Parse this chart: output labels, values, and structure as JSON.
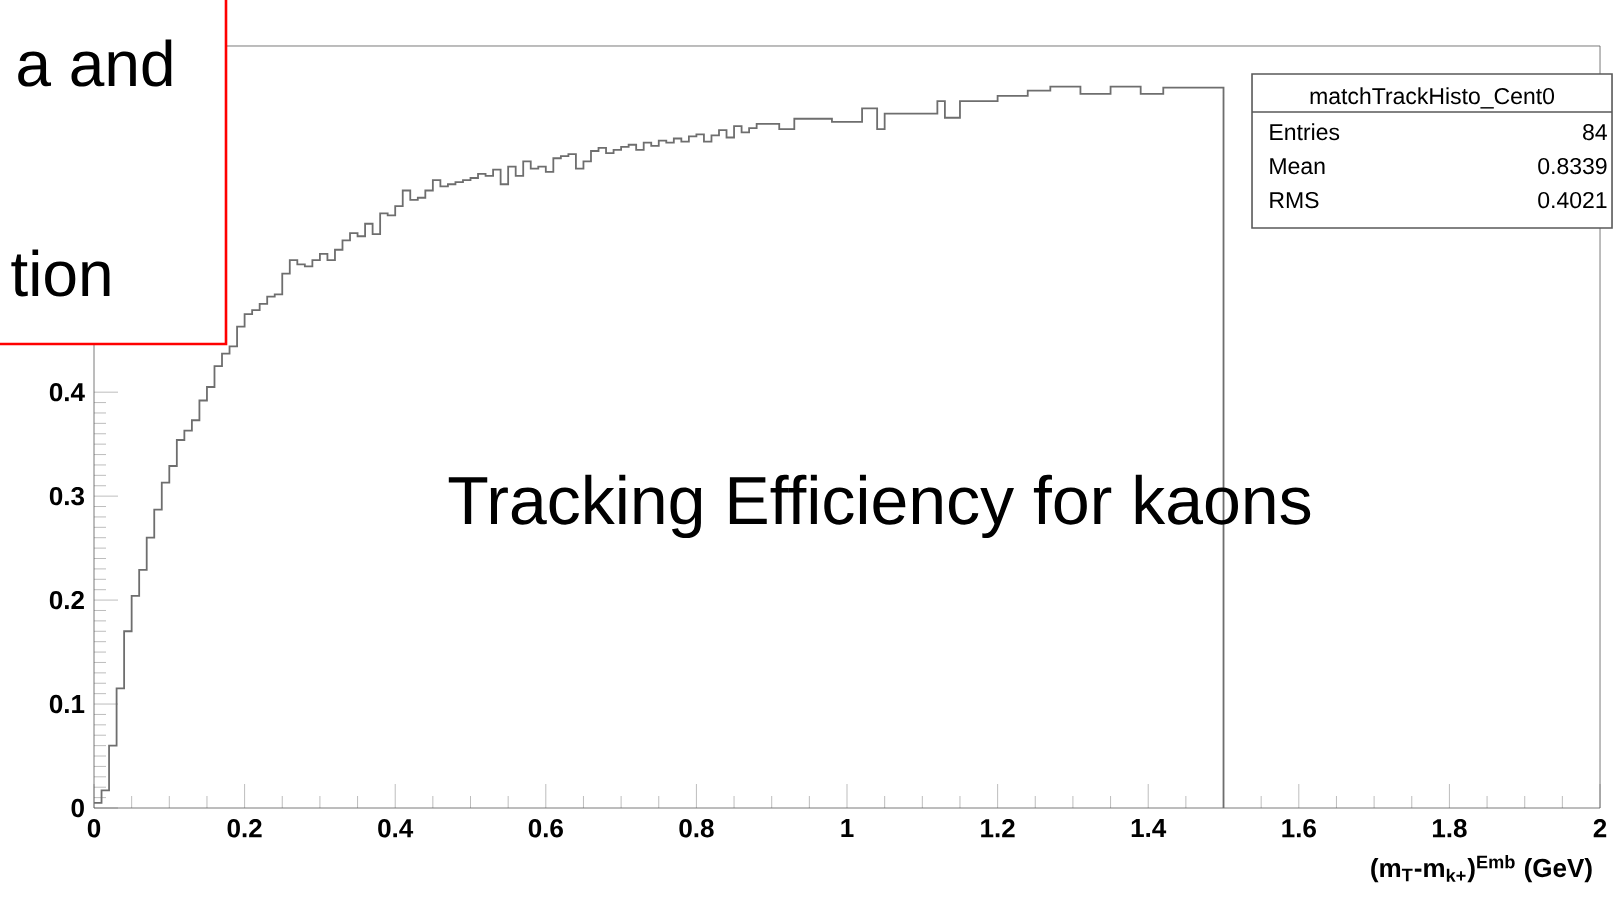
{
  "chart_data": {
    "type": "histogram",
    "xlabel": "(m$_{T}$-m$_{k+}$)$^{Emb}$ (GeV)",
    "color": "#6e6e6e",
    "bins": [
      0,
      0.01,
      0.02,
      0.03,
      0.04,
      0.05,
      0.06,
      0.07,
      0.08,
      0.09,
      0.1,
      0.11,
      0.12,
      0.13,
      0.14,
      0.15,
      0.16,
      0.17,
      0.18,
      0.19,
      0.2,
      0.21,
      0.22,
      0.23,
      0.24,
      0.25,
      0.26,
      0.27,
      0.28,
      0.29,
      0.3,
      0.31,
      0.32,
      0.33,
      0.34,
      0.35,
      0.36,
      0.37,
      0.38,
      0.39,
      0.4,
      0.41,
      0.42,
      0.43,
      0.44,
      0.45,
      0.46,
      0.47,
      0.48,
      0.49,
      0.5,
      0.51,
      0.52,
      0.53,
      0.54,
      0.55,
      0.56,
      0.57,
      0.58,
      0.59,
      0.6,
      0.61,
      0.62,
      0.63,
      0.64,
      0.65,
      0.66,
      0.67,
      0.68,
      0.69,
      0.7,
      0.71,
      0.72,
      0.73,
      0.74,
      0.75,
      0.76,
      0.77,
      0.78,
      0.79,
      0.8,
      0.81,
      0.82,
      0.83,
      0.84,
      0.85,
      0.86,
      0.87,
      0.88,
      0.89,
      0.9,
      0.91,
      0.92,
      0.93,
      0.94,
      0.95,
      0.96,
      0.97,
      0.98,
      0.99,
      1,
      1.01,
      1.02,
      1.03,
      1.04,
      1.05,
      1.06,
      1.07,
      1.08,
      1.09,
      1.1,
      1.11,
      1.12,
      1.13,
      1.14,
      1.15,
      1.16,
      1.17,
      1.18,
      1.19,
      1.2,
      1.21,
      1.22,
      1.23,
      1.24,
      1.25,
      1.26,
      1.27,
      1.28,
      1.29,
      1.3,
      1.31,
      1.32,
      1.33,
      1.34,
      1.35,
      1.36,
      1.37,
      1.38,
      1.39,
      1.4,
      1.41,
      1.42,
      1.43,
      1.44,
      1.45,
      1.46,
      1.47,
      1.48,
      1.49,
      1.5
    ],
    "values": [
      0.005,
      0.017,
      0.06,
      0.115,
      0.17,
      0.204,
      0.229,
      0.26,
      0.287,
      0.313,
      0.329,
      0.354,
      0.363,
      0.373,
      0.392,
      0.405,
      0.425,
      0.437,
      0.444,
      0.463,
      0.475,
      0.479,
      0.485,
      0.492,
      0.494,
      0.514,
      0.527,
      0.523,
      0.521,
      0.527,
      0.533,
      0.527,
      0.537,
      0.546,
      0.553,
      0.55,
      0.562,
      0.552,
      0.572,
      0.57,
      0.579,
      0.594,
      0.585,
      0.587,
      0.594,
      0.604,
      0.598,
      0.6,
      0.602,
      0.604,
      0.606,
      0.61,
      0.608,
      0.614,
      0.6,
      0.617,
      0.608,
      0.622,
      0.615,
      0.617,
      0.612,
      0.625,
      0.627,
      0.629,
      0.615,
      0.622,
      0.632,
      0.635,
      0.63,
      0.633,
      0.636,
      0.638,
      0.633,
      0.64,
      0.637,
      0.642,
      0.64,
      0.644,
      0.641,
      0.646,
      0.648,
      0.641,
      0.647,
      0.652,
      0.645,
      0.656,
      0.65,
      0.654,
      0.658,
      0.658,
      0.658,
      0.653,
      0.653,
      0.663,
      0.663,
      0.663,
      0.663,
      0.663,
      0.66,
      0.66,
      0.66,
      0.66,
      0.673,
      0.673,
      0.653,
      0.668,
      0.668,
      0.668,
      0.668,
      0.668,
      0.668,
      0.668,
      0.68,
      0.664,
      0.664,
      0.68,
      0.68,
      0.68,
      0.68,
      0.68,
      0.685,
      0.685,
      0.685,
      0.685,
      0.69,
      0.69,
      0.69,
      0.694,
      0.694,
      0.694,
      0.694,
      0.687,
      0.687,
      0.687,
      0.687,
      0.694,
      0.694,
      0.694,
      0.694,
      0.687,
      0.687,
      0.687,
      0.693,
      0.693,
      0.693,
      0.693,
      0.693,
      0.693,
      0.693,
      0.693
    ],
    "xlim": [
      0,
      2
    ],
    "ylim": [
      0,
      0.733
    ],
    "xticks": [
      0,
      0.2,
      0.4,
      0.6,
      0.8,
      1,
      1.2,
      1.4,
      1.6,
      1.8,
      2
    ],
    "yticks": [
      0,
      0.1,
      0.2,
      0.3,
      0.4
    ],
    "annotations": [
      "Tracking Efficiency for kaons",
      "matchTrackHisto_Cent0",
      "Entries",
      "84",
      "Mean",
      "0.8339",
      "RMS",
      "0.4021",
      "a and",
      "tion"
    ]
  }
}
